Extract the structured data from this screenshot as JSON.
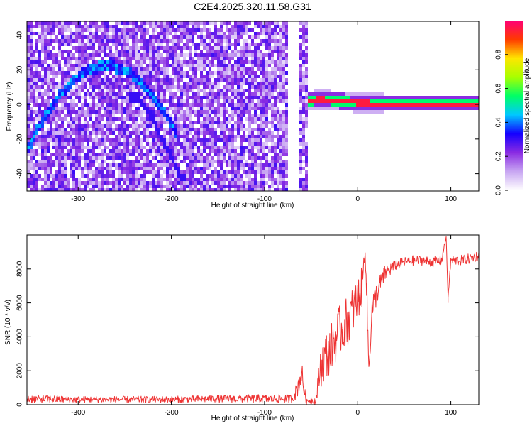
{
  "figure": {
    "title": "C2E4.2025.320.11.58.G31"
  },
  "chart_data": [
    {
      "type": "heatmap",
      "xlabel": "Height of straight line (km)",
      "ylabel": "Frequency (Hz)",
      "xlim": [
        -355,
        130
      ],
      "ylim": [
        -50,
        48
      ],
      "xticks": [
        -300,
        -200,
        -100,
        0,
        100
      ],
      "yticks": [
        -40,
        -20,
        0,
        20,
        40
      ],
      "colorbar": {
        "label": "Normalized spectral amplitude",
        "range": [
          0,
          1
        ],
        "ticks": [
          "0.0",
          "0.2",
          "0.4",
          "0.6",
          "0.8"
        ],
        "colormap": [
          "#ffffff",
          "#c8a6f2",
          "#8a2be2",
          "#1400ff",
          "#00c8ff",
          "#00ff66",
          "#a8ff00",
          "#ffe600",
          "#ff3a00",
          "#ff0077"
        ]
      },
      "data_gap_km": [
        -75,
        -62
      ],
      "noise_end_km": -55,
      "features": [
        {
          "name": "arc",
          "from_km": -355,
          "to_km": -195,
          "peak_km": -270,
          "peak_hz": 22,
          "edge_hz": -27
        },
        {
          "name": "dispersed trace",
          "points": [
            [
              -235,
              4
            ],
            [
              -220,
              -8
            ],
            [
              -210,
              -20
            ],
            [
              -200,
              -30
            ],
            [
              -190,
              -42
            ]
          ]
        },
        {
          "name": "carrier",
          "from_km": -55,
          "to_km": 130,
          "center_hz": [
            [
              -55,
              2
            ],
            [
              -40,
              3
            ],
            [
              -20,
              2
            ],
            [
              0,
              1
            ],
            [
              20,
              0.5
            ],
            [
              130,
              0.5
            ]
          ],
          "peak_amplitude": 0.95
        }
      ]
    },
    {
      "type": "line",
      "xlabel": "Height of straight line (km)",
      "ylabel": "SNR (10 * v/v)",
      "xlim": [
        -355,
        130
      ],
      "ylim": [
        0,
        10000
      ],
      "xticks": [
        -300,
        -200,
        -100,
        0,
        100
      ],
      "yticks": [
        0,
        2000,
        4000,
        6000,
        8000
      ],
      "color": "#ee3333",
      "series": [
        {
          "x": [
            -355,
            -300,
            -250,
            -200,
            -150,
            -100,
            -70,
            -65,
            -60,
            -58,
            -55,
            -50,
            -45,
            -40,
            -35,
            -30,
            -25,
            -20,
            -15,
            -10,
            -5,
            0,
            5,
            8,
            10,
            12,
            15,
            20,
            25,
            30,
            40,
            50,
            60,
            70,
            80,
            90,
            95,
            97,
            100,
            110,
            120,
            130
          ],
          "y": [
            350,
            300,
            300,
            300,
            350,
            350,
            350,
            900,
            1900,
            1000,
            150,
            300,
            200,
            2200,
            2800,
            3200,
            3800,
            4300,
            4600,
            5000,
            5600,
            6200,
            7000,
            9400,
            6000,
            2000,
            5500,
            6500,
            7200,
            7800,
            8200,
            8400,
            8500,
            8500,
            8400,
            8500,
            9900,
            6300,
            8500,
            8500,
            8600,
            8800
          ],
          "noise": [
            250,
            200,
            200,
            200,
            220,
            250,
            250,
            500,
            700,
            500,
            150,
            250,
            200,
            1200,
            1400,
            1400,
            1500,
            1500,
            1500,
            1500,
            1400,
            1300,
            1200,
            500,
            1200,
            800,
            1000,
            700,
            600,
            500,
            300,
            300,
            300,
            300,
            300,
            300,
            0,
            0,
            300,
            300,
            300,
            300
          ]
        }
      ]
    }
  ]
}
